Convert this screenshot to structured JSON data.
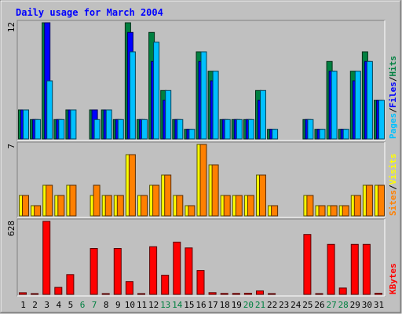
{
  "chart_data": {
    "type": "bar",
    "title": "Daily usage for March 2004",
    "days": [
      1,
      2,
      3,
      4,
      5,
      6,
      7,
      8,
      9,
      10,
      11,
      12,
      13,
      14,
      15,
      16,
      17,
      18,
      19,
      20,
      21,
      22,
      23,
      24,
      25,
      26,
      27,
      28,
      29,
      30,
      31
    ],
    "weekend_days": [
      6,
      7,
      13,
      14,
      20,
      21,
      27,
      28
    ],
    "panels": [
      {
        "name": "pages-files-hits",
        "ymax_label": "12",
        "ymax": 12,
        "side_label": {
          "parts": [
            "Pages",
            "/",
            "Files",
            "/",
            "Hits"
          ],
          "colors": [
            "#00c0ff",
            "#000000",
            "#0000ff",
            "#000000",
            "#008040"
          ]
        },
        "series": [
          {
            "name": "Hits",
            "color": "#008040",
            "values": [
              3,
              2,
              12,
              2,
              3,
              0,
              3,
              3,
              2,
              12,
              2,
              11,
              5,
              2,
              1,
              9,
              7,
              2,
              2,
              2,
              5,
              1,
              0,
              0,
              2,
              1,
              8,
              1,
              7,
              9,
              4
            ]
          },
          {
            "name": "Files",
            "color": "#0000ff",
            "values": [
              3,
              2,
              12,
              2,
              3,
              0,
              3,
              3,
              2,
              11,
              2,
              8,
              4,
              2,
              1,
              8,
              6,
              2,
              2,
              2,
              4,
              1,
              0,
              0,
              2,
              1,
              7,
              1,
              6,
              8,
              4
            ]
          },
          {
            "name": "Pages",
            "color": "#00c0ff",
            "values": [
              3,
              2,
              6,
              2,
              3,
              0,
              2,
              3,
              2,
              9,
              2,
              10,
              5,
              2,
              1,
              9,
              7,
              2,
              2,
              2,
              5,
              1,
              0,
              0,
              2,
              1,
              7,
              1,
              7,
              8,
              4
            ]
          }
        ]
      },
      {
        "name": "sites-visits",
        "ymax_label": "7",
        "ymax": 7,
        "side_label": {
          "parts": [
            "Sites",
            "/",
            "Visits"
          ],
          "colors": [
            "#ff8000",
            "#000000",
            "#ffff00"
          ]
        },
        "series": [
          {
            "name": "Visits",
            "color": "#ffff00",
            "values": [
              2,
              1,
              3,
              2,
              3,
              0,
              2,
              2,
              2,
              6,
              2,
              3,
              4,
              2,
              1,
              7,
              5,
              2,
              2,
              2,
              4,
              1,
              0,
              0,
              2,
              1,
              1,
              1,
              2,
              3,
              3
            ]
          },
          {
            "name": "Sites",
            "color": "#ff8000",
            "values": [
              2,
              1,
              3,
              2,
              3,
              0,
              3,
              2,
              2,
              6,
              2,
              3,
              4,
              2,
              1,
              7,
              5,
              2,
              2,
              2,
              4,
              1,
              0,
              0,
              2,
              1,
              1,
              1,
              2,
              3,
              3
            ]
          }
        ]
      },
      {
        "name": "kbytes",
        "ymax_label": "628",
        "ymax": 628,
        "side_label": {
          "parts": [
            "KBytes"
          ],
          "colors": [
            "#ff0000"
          ]
        },
        "series": [
          {
            "name": "KBytes",
            "color": "#ff0000",
            "values": [
              14,
              2,
              628,
              60,
              170,
              0,
              395,
              5,
              395,
              110,
              5,
              410,
              165,
              450,
              400,
              205,
              15,
              8,
              8,
              10,
              30,
              5,
              0,
              0,
              515,
              5,
              430,
              55,
              430,
              430,
              10
            ]
          }
        ]
      }
    ],
    "colors": {
      "background": "#c0c0c0",
      "title": "#0000ff",
      "weekday_label": "#000000",
      "weekend_label": "#008040"
    }
  }
}
